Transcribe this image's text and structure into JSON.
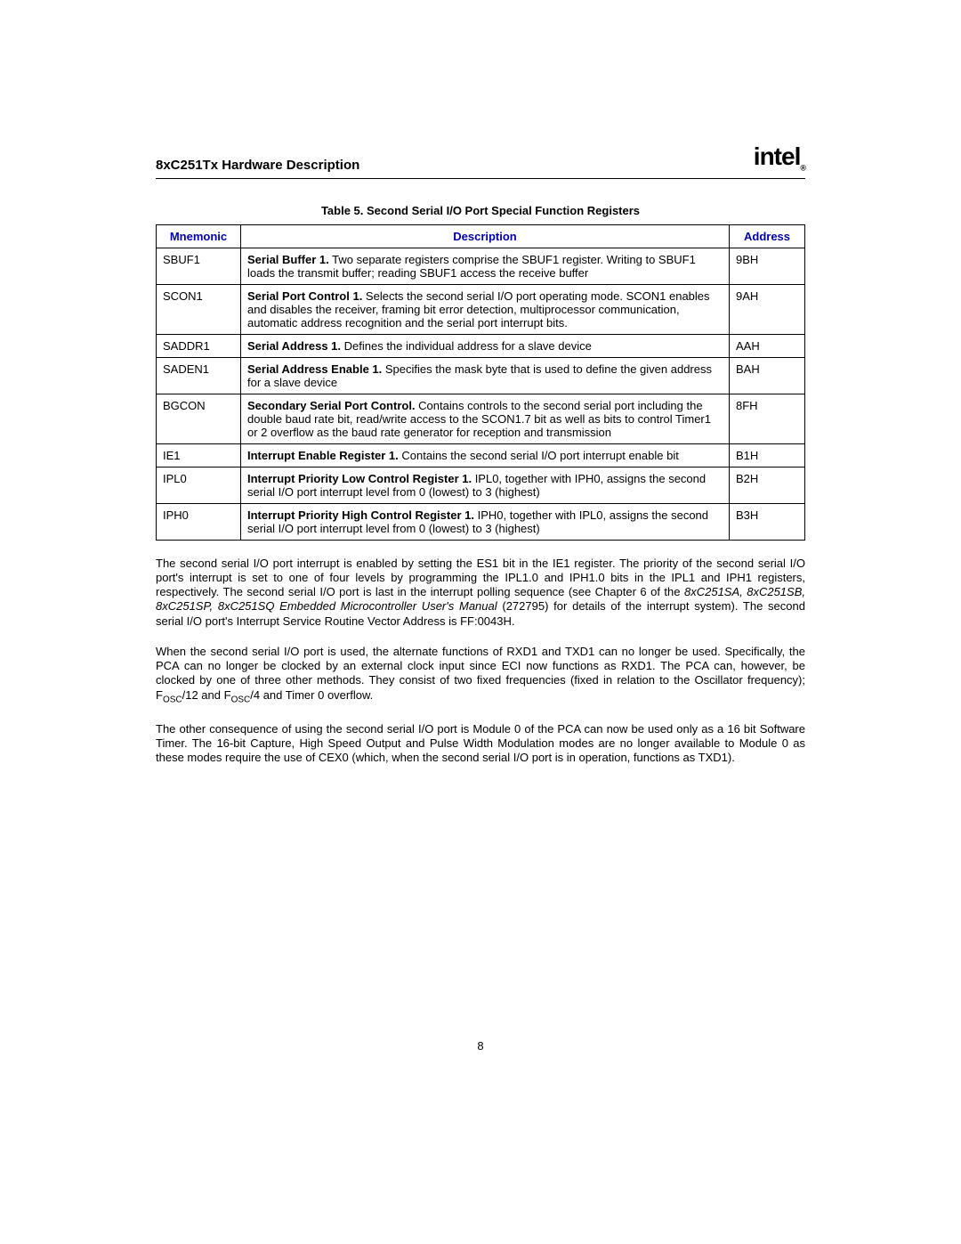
{
  "header": {
    "title": "8xC251Tx Hardware Description",
    "logo_text": "intel",
    "logo_reg": "®"
  },
  "table": {
    "caption": "Table 5. Second Serial I/O Port Special Function Registers",
    "header_colors": {
      "text": "#0000aa"
    },
    "columns": {
      "mnemonic": "Mnemonic",
      "description": "Description",
      "address": "Address"
    },
    "rows": [
      {
        "mnemonic": "SBUF1",
        "desc_bold": "Serial Buffer 1.",
        "desc_rest": " Two separate registers comprise the SBUF1 register. Writing to SBUF1 loads the transmit buffer; reading SBUF1 access the receive buffer",
        "address": "9BH"
      },
      {
        "mnemonic": "SCON1",
        "desc_bold": "Serial Port Control 1.",
        "desc_rest": " Selects the second serial I/O port operating mode. SCON1 enables and disables the receiver, framing bit error detection, multiprocessor communication, automatic address recognition and the serial port interrupt bits.",
        "address": "9AH"
      },
      {
        "mnemonic": "SADDR1",
        "desc_bold": "Serial Address 1.",
        "desc_rest": " Defines the individual address for a slave device",
        "address": "AAH"
      },
      {
        "mnemonic": "SADEN1",
        "desc_bold": "Serial Address Enable 1.",
        "desc_rest": " Specifies the mask byte that is used to define the given address for a slave device",
        "address": "BAH"
      },
      {
        "mnemonic": "BGCON",
        "desc_bold": "Secondary Serial Port Control.",
        "desc_rest": " Contains controls to the second serial port including the double baud rate bit, read/write access to the SCON1.7 bit as well as bits to control Timer1 or 2 overflow as the baud rate generator for reception and transmission",
        "address": "8FH"
      },
      {
        "mnemonic": "IE1",
        "desc_bold": "Interrupt Enable Register 1.",
        "desc_rest": " Contains the second serial I/O port interrupt enable bit",
        "address": "B1H"
      },
      {
        "mnemonic": "IPL0",
        "desc_bold": "Interrupt Priority Low Control Register 1.",
        "desc_rest": " IPL0, together with IPH0, assigns the second serial I/O port interrupt level from 0 (lowest) to 3 (highest)",
        "address": "B2H"
      },
      {
        "mnemonic": "IPH0",
        "desc_bold": "Interrupt Priority High Control Register 1.",
        "desc_rest": " IPH0, together with IPL0, assigns the second serial I/O port interrupt level from 0 (lowest) to 3 (highest)",
        "address": "B3H"
      }
    ]
  },
  "paragraphs": {
    "p1a": "The second serial I/O port interrupt is enabled by setting the ES1 bit in the IE1 register. The priority of the second serial I/O port's interrupt is set to one of four levels by programming the IPL1.0 and IPH1.0 bits in the IPL1 and IPH1 registers, respectively. The second serial I/O port is last in the interrupt polling sequence (see Chapter 6 of the ",
    "p1_italic": "8xC251SA, 8xC251SB, 8xC251SP, 8xC251SQ Embedded Microcontroller User's Manual",
    "p1b": " (272795) for details of the interrupt system). The second serial I/O port's Interrupt Service Routine Vector Address is FF:0043H.",
    "p2a": "When the second serial I/O port is used, the alternate functions of RXD1 and TXD1 can no longer be used. Specifically, the PCA can no longer be clocked by an external clock input since ECI now functions as RXD1. The PCA can, however, be clocked by one of three other methods. They consist of two fixed frequencies (fixed in relation to the Oscillator frequency); F",
    "p2_sub1": "OSC",
    "p2b": "/12 and F",
    "p2_sub2": "OSC",
    "p2c": "/4 and Timer 0 overflow.",
    "p3": "The other consequence of using the second serial I/O port is Module 0 of the PCA can now be used only as a 16 bit Software Timer. The 16-bit Capture, High Speed Output and Pulse Width Modulation modes are no longer available to Module 0 as these modes require the use of CEX0 (which, when the second serial I/O port is in operation, functions as TXD1)."
  },
  "page_number": "8"
}
